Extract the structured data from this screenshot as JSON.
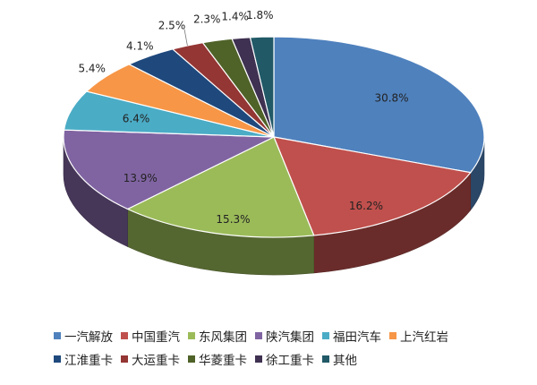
{
  "chart_data": {
    "type": "pie",
    "categories": [
      "一汽解放",
      "中国重汽",
      "东风集团",
      "陕汽集团",
      "福田汽车",
      "上汽红岩",
      "江淮重卡",
      "大运重卡",
      "华菱重卡",
      "徐工重卡",
      "其他"
    ],
    "values": [
      30.8,
      16.2,
      15.3,
      13.9,
      6.4,
      5.4,
      4.1,
      2.5,
      2.3,
      1.4,
      1.8
    ],
    "labels": [
      "30.8%",
      "16.2%",
      "15.3%",
      "13.9%",
      "6.4%",
      "5.4%",
      "4.1%",
      "2.5%",
      "2.3%",
      "1.4%",
      "1.8%"
    ],
    "colors": [
      "#4F81BD",
      "#C0504D",
      "#9BBB59",
      "#8064A2",
      "#4BACC6",
      "#F79646",
      "#1F497D",
      "#943634",
      "#4F6228",
      "#3F3151",
      "#215967"
    ],
    "legend_position": "bottom",
    "style": "3d"
  }
}
